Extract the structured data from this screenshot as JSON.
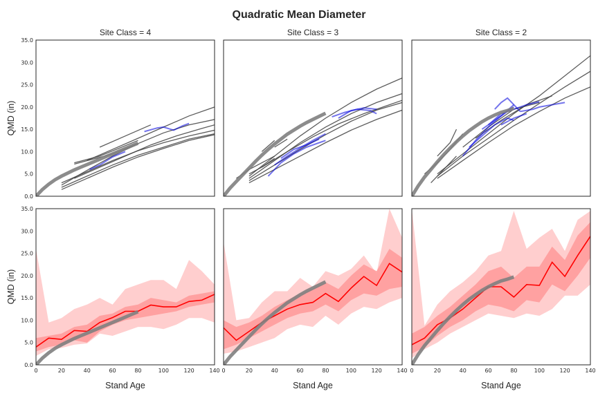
{
  "chart_data": {
    "type": "line",
    "title": "Quadratic Mean Diameter",
    "xlabel": "Stand Age",
    "ylabel": "QMD (in)",
    "xlim": [
      0,
      140
    ],
    "ylim": [
      0,
      35
    ],
    "xticks": [
      "0",
      "20",
      "40",
      "60",
      "80",
      "100",
      "120",
      "140"
    ],
    "yticks": [
      "0.0",
      "5.0",
      "10.0",
      "15.0",
      "20.0",
      "25.0",
      "30.0",
      "35.0"
    ],
    "colors": {
      "model": "#7f7f7f",
      "observed_gray": "#404040",
      "observed_blue": "#0000dd",
      "median": "#ff0000",
      "band_inner": "#ff9c9c",
      "band_outer": "#ffc9c9"
    },
    "panels": [
      {
        "title": "Site Class = 4",
        "model_curve": {
          "x": [
            0,
            5,
            10,
            15,
            20,
            25,
            30,
            35,
            40,
            45,
            50,
            55,
            60,
            65,
            70,
            75,
            80
          ],
          "y": [
            0,
            1.5,
            2.7,
            3.7,
            4.5,
            5.2,
            5.9,
            6.5,
            7.1,
            7.7,
            8.3,
            8.9,
            9.5,
            10.1,
            10.7,
            11.3,
            11.9
          ]
        },
        "observed_gray": [
          {
            "x": [
              30,
              50,
              80
            ],
            "y": [
              7.5,
              9.0,
              12.5
            ]
          },
          {
            "x": [
              30,
              60,
              80
            ],
            "y": [
              7.2,
              9.5,
              11.8
            ]
          },
          {
            "x": [
              20,
              40,
              60,
              80,
              100,
              120,
              140
            ],
            "y": [
              3.0,
              5.5,
              8.0,
              10.2,
              12.0,
              13.5,
              14.8
            ]
          },
          {
            "x": [
              20,
              40,
              60,
              80,
              100,
              120,
              140
            ],
            "y": [
              2.0,
              4.5,
              7.0,
              9.2,
              11.0,
              12.8,
              14.0
            ]
          },
          {
            "x": [
              20,
              40,
              60,
              80,
              100,
              120,
              140
            ],
            "y": [
              2.5,
              5.8,
              9.0,
              11.8,
              14.2,
              16.0,
              17.2
            ]
          },
          {
            "x": [
              40,
              60,
              80,
              100,
              120,
              140
            ],
            "y": [
              8.0,
              10.5,
              13.0,
              15.5,
              18.0,
              20.0
            ]
          },
          {
            "x": [
              20,
              40,
              60,
              80,
              100,
              120,
              140
            ],
            "y": [
              1.5,
              4.0,
              6.5,
              8.8,
              10.7,
              12.5,
              13.8
            ]
          },
          {
            "x": [
              30,
              50,
              70,
              90,
              110,
              130,
              140
            ],
            "y": [
              4.0,
              6.5,
              9.0,
              11.5,
              13.5,
              15.2,
              16.0
            ]
          },
          {
            "x": [
              50,
              70,
              90
            ],
            "y": [
              11.0,
              13.5,
              16.0
            ]
          }
        ],
        "observed_blue": [
          {
            "x": [
              42,
              50,
              60,
              70
            ],
            "y": [
              6.0,
              7.0,
              8.8,
              10.0
            ]
          },
          {
            "x": [
              85,
              95,
              100,
              108,
              115,
              120
            ],
            "y": [
              14.5,
              15.3,
              15.5,
              14.8,
              15.8,
              16.3
            ]
          }
        ],
        "median": {
          "x": [
            0,
            10,
            20,
            30,
            40,
            50,
            60,
            70,
            80,
            90,
            100,
            110,
            120,
            130,
            140
          ],
          "y": [
            4.0,
            6.0,
            5.7,
            7.7,
            7.5,
            9.5,
            10.6,
            12.0,
            12.0,
            13.4,
            13.0,
            13.0,
            14.2,
            14.5,
            15.8
          ]
        },
        "band_inner": {
          "lower": [
            3.0,
            4.0,
            4.5,
            5.5,
            5.0,
            7.5,
            9.0,
            10.0,
            10.5,
            11.0,
            11.5,
            12.0,
            13.0,
            13.5,
            14.0
          ],
          "upper": [
            6.0,
            6.5,
            7.0,
            8.5,
            9.0,
            11.0,
            11.5,
            13.0,
            13.5,
            15.0,
            14.5,
            14.0,
            15.5,
            16.0,
            16.5
          ]
        },
        "band_outer": {
          "lower": [
            2.0,
            3.5,
            3.8,
            4.5,
            4.8,
            7.0,
            6.5,
            7.5,
            8.5,
            8.5,
            8.0,
            9.0,
            10.5,
            10.5,
            9.5
          ],
          "upper": [
            26.0,
            9.5,
            10.5,
            12.5,
            13.5,
            15.0,
            13.5,
            17.0,
            18.0,
            19.0,
            19.0,
            17.0,
            23.5,
            21.0,
            18.0
          ]
        }
      },
      {
        "title": "Site Class = 3",
        "model_curve": {
          "x": [
            0,
            5,
            10,
            15,
            20,
            25,
            30,
            35,
            40,
            45,
            50,
            55,
            60,
            65,
            70,
            75,
            80
          ],
          "y": [
            0,
            1.8,
            3.3,
            4.8,
            6.3,
            7.8,
            9.2,
            10.5,
            11.7,
            12.8,
            13.9,
            14.8,
            15.7,
            16.5,
            17.2,
            17.9,
            18.6
          ]
        },
        "observed_gray": [
          {
            "x": [
              20,
              40,
              60,
              80,
              100,
              120,
              140
            ],
            "y": [
              4.0,
              8.0,
              12.0,
              15.5,
              18.5,
              21.0,
              23.0
            ]
          },
          {
            "x": [
              20,
              40,
              60,
              80,
              100,
              120,
              140
            ],
            "y": [
              3.5,
              7.0,
              10.5,
              13.8,
              16.8,
              19.3,
              21.0
            ]
          },
          {
            "x": [
              20,
              40,
              60,
              80,
              100,
              120,
              140
            ],
            "y": [
              3.0,
              6.0,
              9.0,
              12.0,
              14.8,
              17.2,
              19.3
            ]
          },
          {
            "x": [
              20,
              40,
              60,
              80,
              100,
              120,
              140
            ],
            "y": [
              4.5,
              9.0,
              13.5,
              17.5,
              21.0,
              24.0,
              26.5
            ]
          },
          {
            "x": [
              30,
              50,
              70,
              90,
              110,
              130,
              140
            ],
            "y": [
              6.5,
              10.0,
              13.3,
              16.2,
              18.5,
              20.5,
              21.5
            ]
          },
          {
            "x": [
              10,
              20,
              30,
              40
            ],
            "y": [
              4.0,
              6.0,
              7.5,
              9.0
            ]
          },
          {
            "x": [
              20,
              30,
              40
            ],
            "y": [
              5.0,
              6.5,
              8.5
            ]
          },
          {
            "x": [
              30,
              40
            ],
            "y": [
              10.0,
              12.5
            ]
          },
          {
            "x": [
              40,
              50
            ],
            "y": [
              11.0,
              12.8
            ]
          }
        ],
        "observed_blue": [
          {
            "x": [
              35,
              45,
              55,
              65,
              75,
              80
            ],
            "y": [
              4.5,
              7.5,
              9.5,
              11.0,
              12.0,
              12.5
            ]
          },
          {
            "x": [
              40,
              50,
              60,
              70,
              80
            ],
            "y": [
              7.0,
              9.0,
              10.8,
              12.5,
              14.0
            ]
          },
          {
            "x": [
              45,
              55,
              65,
              75
            ],
            "y": [
              8.5,
              10.5,
              11.5,
              12.8
            ]
          },
          {
            "x": [
              85,
              95,
              105,
              115,
              120
            ],
            "y": [
              17.8,
              18.8,
              19.5,
              19.2,
              18.5
            ]
          },
          {
            "x": [
              90,
              100,
              110,
              120
            ],
            "y": [
              17.5,
              19.2,
              19.8,
              19.5
            ]
          }
        ],
        "median": {
          "x": [
            0,
            10,
            20,
            30,
            40,
            50,
            60,
            70,
            80,
            90,
            100,
            110,
            120,
            130,
            140
          ],
          "y": [
            8.3,
            5.5,
            7.5,
            9.5,
            11.0,
            12.5,
            13.5,
            14.0,
            16.0,
            14.2,
            17.2,
            19.8,
            17.8,
            22.7,
            20.8
          ]
        },
        "band_inner": {
          "lower": [
            3.5,
            4.5,
            6.0,
            7.5,
            9.0,
            10.5,
            11.5,
            12.0,
            13.5,
            12.0,
            14.5,
            16.0,
            15.5,
            17.0,
            17.5
          ],
          "upper": [
            10.0,
            8.5,
            9.5,
            11.0,
            13.0,
            14.5,
            16.0,
            17.0,
            18.5,
            17.0,
            20.0,
            22.5,
            21.0,
            26.0,
            24.0
          ]
        },
        "band_outer": {
          "lower": [
            2.5,
            3.0,
            4.0,
            5.0,
            6.0,
            8.0,
            9.0,
            8.5,
            11.0,
            9.0,
            11.5,
            13.0,
            12.5,
            14.0,
            15.0
          ],
          "upper": [
            27.5,
            10.0,
            10.5,
            14.0,
            16.5,
            16.5,
            19.5,
            17.5,
            21.0,
            20.0,
            21.5,
            24.5,
            20.5,
            35.0,
            28.5
          ]
        }
      },
      {
        "title": "Site Class = 2",
        "model_curve": {
          "x": [
            0,
            5,
            10,
            15,
            20,
            25,
            30,
            35,
            40,
            45,
            50,
            55,
            60,
            65,
            70,
            75,
            80
          ],
          "y": [
            0,
            2.3,
            4.3,
            6.0,
            7.7,
            9.3,
            10.8,
            12.2,
            13.5,
            14.7,
            15.7,
            16.7,
            17.5,
            18.2,
            18.8,
            19.2,
            19.7
          ]
        },
        "observed_gray": [
          {
            "x": [
              20,
              40,
              60,
              80,
              100,
              120,
              140
            ],
            "y": [
              5.0,
              9.5,
              14.0,
              18.5,
              22.5,
              27.0,
              31.5
            ]
          },
          {
            "x": [
              20,
              40,
              60,
              80,
              100,
              120,
              140
            ],
            "y": [
              4.5,
              9.0,
              13.0,
              17.0,
              20.8,
              24.5,
              28.0
            ]
          },
          {
            "x": [
              20,
              40,
              60,
              80,
              100,
              120,
              140
            ],
            "y": [
              4.0,
              8.0,
              12.0,
              15.8,
              19.0,
              22.0,
              24.5
            ]
          },
          {
            "x": [
              10,
              20,
              30,
              40
            ],
            "y": [
              5.0,
              7.5,
              10.5,
              14.0
            ]
          },
          {
            "x": [
              20,
              30,
              35
            ],
            "y": [
              9.0,
              12.0,
              15.0
            ]
          },
          {
            "x": [
              15,
              25,
              35
            ],
            "y": [
              3.0,
              6.0,
              9.0
            ]
          },
          {
            "x": [
              40,
              60,
              80,
              100
            ],
            "y": [
              11.0,
              15.5,
              19.5,
              21.0
            ]
          },
          {
            "x": [
              50,
              70,
              90,
              110
            ],
            "y": [
              13.0,
              17.0,
              20.5,
              22.5
            ]
          }
        ],
        "observed_blue": [
          {
            "x": [
              40,
              50,
              60,
              70,
              80
            ],
            "y": [
              9.0,
              12.5,
              15.5,
              18.0,
              20.5
            ]
          },
          {
            "x": [
              45,
              55,
              65,
              75,
              80
            ],
            "y": [
              11.0,
              13.5,
              16.0,
              17.5,
              17.0
            ]
          },
          {
            "x": [
              55,
              65,
              75,
              80
            ],
            "y": [
              15.0,
              17.0,
              19.0,
              20.0
            ]
          },
          {
            "x": [
              60,
              70,
              80,
              90,
              100
            ],
            "y": [
              16.0,
              18.5,
              19.5,
              20.5,
              21.2
            ]
          },
          {
            "x": [
              65,
              70,
              75,
              80,
              85
            ],
            "y": [
              19.5,
              21.0,
              22.0,
              20.5,
              19.0
            ]
          },
          {
            "x": [
              85,
              95,
              100,
              110,
              120
            ],
            "y": [
              19.0,
              19.5,
              20.0,
              20.5,
              21.0
            ]
          },
          {
            "x": [
              70,
              80,
              90
            ],
            "y": [
              16.0,
              17.5,
              18.5
            ]
          }
        ],
        "median": {
          "x": [
            0,
            10,
            20,
            30,
            40,
            50,
            60,
            70,
            80,
            90,
            100,
            110,
            120,
            130,
            140
          ],
          "y": [
            4.5,
            6.0,
            9.0,
            10.5,
            12.5,
            15.0,
            17.5,
            17.5,
            15.2,
            18.0,
            17.8,
            23.0,
            19.8,
            24.5,
            28.8
          ]
        },
        "band_inner": {
          "lower": [
            2.5,
            4.0,
            6.5,
            8.5,
            10.0,
            12.0,
            13.5,
            13.0,
            12.0,
            14.5,
            14.0,
            18.0,
            16.5,
            20.0,
            24.0
          ],
          "upper": [
            7.0,
            8.5,
            11.0,
            13.0,
            15.5,
            18.0,
            21.0,
            22.0,
            19.5,
            22.0,
            22.0,
            26.5,
            23.5,
            29.0,
            32.0
          ]
        },
        "band_outer": {
          "lower": [
            1.5,
            3.5,
            5.0,
            7.0,
            8.5,
            10.0,
            11.5,
            11.0,
            10.5,
            11.5,
            11.0,
            12.5,
            15.5,
            15.5,
            18.0
          ],
          "upper": [
            35.0,
            8.8,
            13.5,
            16.5,
            18.5,
            21.0,
            24.5,
            25.5,
            34.5,
            26.0,
            28.5,
            30.5,
            25.5,
            32.5,
            34.5
          ]
        }
      }
    ]
  }
}
